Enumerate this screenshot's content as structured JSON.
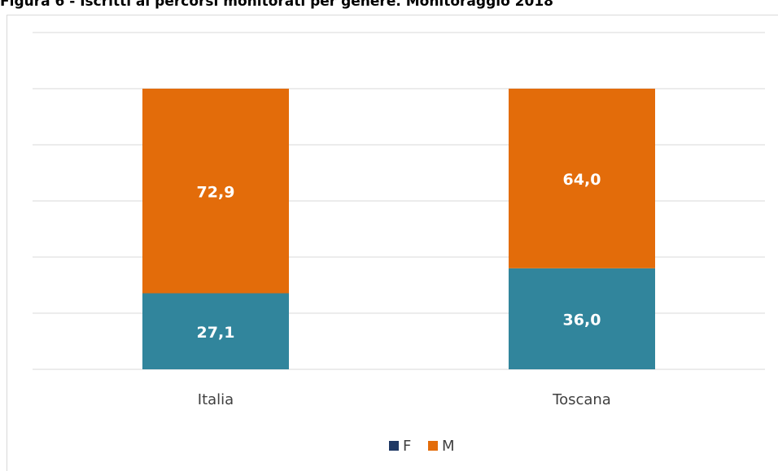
{
  "chart_data": {
    "type": "stacked_bar",
    "title": "Figura 6 - Iscritti ai percorsi monitorati per genere. Monitoraggio 2018",
    "categories": [
      "Italia",
      "Toscana"
    ],
    "series": [
      {
        "name": "F",
        "color": "#31859c",
        "legend_color": "#1f3864",
        "values": [
          27.1,
          36.0
        ],
        "value_labels": [
          "27,1",
          "36,0"
        ]
      },
      {
        "name": "M",
        "color": "#e36c0a",
        "legend_color": "#e36c0a",
        "values": [
          72.9,
          64.0
        ],
        "value_labels": [
          "72,9",
          "64,0"
        ]
      }
    ],
    "ylim": [
      0,
      120
    ],
    "yticks": [
      0,
      20,
      40,
      60,
      80,
      100,
      120
    ],
    "grid": true,
    "legend": "bottom"
  }
}
